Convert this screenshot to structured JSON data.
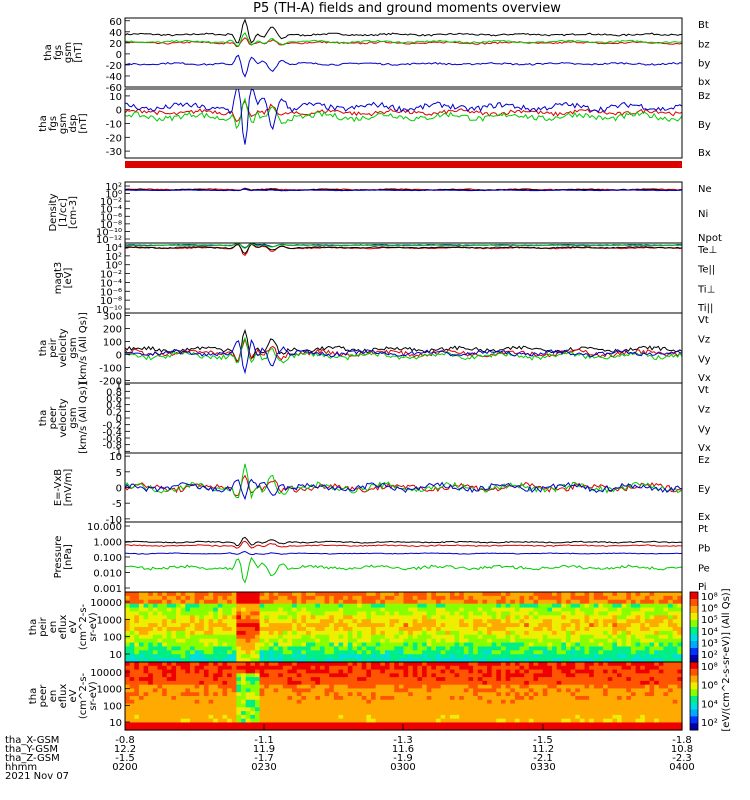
{
  "title": "P5 (TH-A) fields and ground moments overview",
  "colors": {
    "black": "#000000",
    "red": "#dd0000",
    "green": "#00cc00",
    "blue": "#0000cc"
  },
  "chart_data": [
    {
      "type": "line",
      "ylabel": [
        "tha",
        "fgs",
        "gsm",
        "[nT]"
      ],
      "yticks": [
        60,
        40,
        20,
        0,
        -20,
        -40,
        -60
      ],
      "ylim": [
        -60,
        65
      ],
      "series": [
        {
          "name": "Bt",
          "color": "black",
          "base": 35,
          "noise": 1.5,
          "event": 28
        },
        {
          "name": "bz",
          "color": "red",
          "base": 20,
          "noise": 1.5,
          "event": 10
        },
        {
          "name": "by",
          "color": "green",
          "base": 22,
          "noise": 1.5,
          "event": 15
        },
        {
          "name": "bx",
          "color": "blue",
          "base": -18,
          "noise": 1.5,
          "event": -25
        }
      ]
    },
    {
      "type": "line",
      "ylabel": [
        "tha",
        "fgs",
        "gsm",
        "dsp",
        "[nT]"
      ],
      "yticks": [
        10,
        0,
        -10,
        -20,
        -30
      ],
      "ylim": [
        -35,
        15
      ],
      "series": [
        {
          "name": "Bz",
          "color": "red",
          "base": -2,
          "noise": 1.5,
          "event": 8
        },
        {
          "name": "By",
          "color": "green",
          "base": -5,
          "noise": 2,
          "event": 12
        },
        {
          "name": "Bx",
          "color": "blue",
          "base": 2,
          "noise": 2,
          "event": -30
        }
      ]
    },
    {
      "type": "line",
      "ylabel": [
        "Density",
        "[1/cc]",
        "[cm-3]"
      ],
      "yticks": [
        "10²",
        "10⁰",
        "10⁻²",
        "10⁻⁴",
        "10⁻⁶",
        "10⁻⁸",
        "10⁻¹⁰",
        "10⁻¹²"
      ],
      "log": true,
      "ylim": [
        -12,
        2
      ],
      "series": [
        {
          "name": "Ne",
          "color": "red",
          "base": 0.3,
          "noise": 0.1,
          "event": 0.3
        },
        {
          "name": "Ni",
          "color": "black",
          "base": 0.2,
          "noise": 0.1,
          "event": 0.3
        },
        {
          "name": "Npot",
          "color": "blue",
          "base": 0.1,
          "noise": 0.05,
          "event": 0.2
        }
      ]
    },
    {
      "type": "line",
      "ylabel": [
        "magt3",
        "[eV]"
      ],
      "yticks": [
        "10⁴",
        "10²",
        "10⁰",
        "10⁻²",
        "10⁻⁴",
        "10⁻⁶",
        "10⁻⁸",
        "10⁻¹⁰"
      ],
      "log": true,
      "ylim": [
        -10,
        4
      ],
      "series": [
        {
          "name": "Te⊥",
          "color": "red",
          "base": 3,
          "noise": 0.1,
          "event": -1.5
        },
        {
          "name": "Te||",
          "color": "black",
          "base": 3.1,
          "noise": 0.1,
          "event": -1.2
        },
        {
          "name": "Ti⊥",
          "color": "blue",
          "base": 3.6,
          "noise": 0.05,
          "event": -0.6
        },
        {
          "name": "Ti||",
          "color": "green",
          "base": 3.5,
          "noise": 0.05,
          "event": -0.6
        }
      ]
    },
    {
      "type": "line",
      "ylabel": [
        "tha",
        "peir",
        "velocity",
        "gsm",
        "[km/s (All Qs)]"
      ],
      "yticks": [
        300,
        200,
        100,
        0,
        -100,
        -200
      ],
      "ylim": [
        -220,
        320
      ],
      "series": [
        {
          "name": "Vt",
          "color": "black",
          "base": 40,
          "noise": 15,
          "event": 150
        },
        {
          "name": "Vz",
          "color": "red",
          "base": 10,
          "noise": 18,
          "event": 90
        },
        {
          "name": "Vy",
          "color": "green",
          "base": -10,
          "noise": 18,
          "event": 110
        },
        {
          "name": "Vx",
          "color": "blue",
          "base": 10,
          "noise": 15,
          "event": -170
        }
      ]
    },
    {
      "type": "line",
      "ylabel": [
        "tha",
        "peer",
        "velocity",
        "gsm",
        "[km/s (All Qs)]"
      ],
      "yticks": [
        1.0,
        0.8,
        0.6,
        0.4,
        0.2,
        0.0,
        -0.2,
        -0.4,
        -0.6,
        -0.8,
        -1.0
      ],
      "ylim": [
        -1.05,
        1.05
      ],
      "series": [
        {
          "name": "Vt",
          "color": "black"
        },
        {
          "name": "Vz",
          "color": "red"
        },
        {
          "name": "Vy",
          "color": "green"
        },
        {
          "name": "Vx",
          "color": "blue"
        }
      ]
    },
    {
      "type": "line",
      "ylabel": [
        "E=-VxB",
        "[mV/m]"
      ],
      "yticks": [
        10,
        5,
        0,
        -5,
        -10
      ],
      "ylim": [
        -11,
        11
      ],
      "series": [
        {
          "name": "Ez",
          "color": "red",
          "base": 0,
          "noise": 0.9,
          "event": 4
        },
        {
          "name": "Ey",
          "color": "green",
          "base": 0,
          "noise": 1.0,
          "event": 7
        },
        {
          "name": "Ex",
          "color": "blue",
          "base": 0,
          "noise": 0.9,
          "event": -4
        }
      ]
    },
    {
      "type": "line",
      "ylabel": [
        "Pressure",
        "[nPa]"
      ],
      "yticks": [
        "10.000",
        "1.000",
        "0.100",
        "0.010",
        "0.001"
      ],
      "log": true,
      "ylim": [
        -3,
        1
      ],
      "series": [
        {
          "name": "Pt",
          "color": "black",
          "base": -0.15,
          "noise": 0.03,
          "event": 0.3
        },
        {
          "name": "Pb",
          "color": "red",
          "base": -0.35,
          "noise": 0.03,
          "event": 0.25
        },
        {
          "name": "Pe",
          "color": "green",
          "base": -1.6,
          "noise": 0.08,
          "event": -0.9
        },
        {
          "name": "Pi",
          "color": "blue",
          "base": -0.8,
          "noise": 0.02,
          "event": 0.1
        }
      ]
    },
    {
      "type": "heatmap",
      "ylabel": [
        "tha",
        "peir",
        "en",
        "eflux",
        "eV",
        "(cm^2-s-",
        "sr-eV)"
      ],
      "yticks": [
        "10000",
        "1000",
        "100",
        "10"
      ],
      "ylim": [
        5,
        24000
      ],
      "colorbar_ticks": [
        "10⁸",
        "10⁶",
        "10⁵",
        "10⁴",
        "10³",
        "10²"
      ]
    },
    {
      "type": "heatmap",
      "ylabel": [
        "tha",
        "peer",
        "en",
        "eflux",
        "eV",
        "(cm^2-s-",
        "sr-eV)"
      ],
      "yticks": [
        "10000",
        "1000",
        "100",
        "10"
      ],
      "ylim": [
        5,
        24000
      ],
      "colorbar_ticks": [
        "10⁸",
        "10⁶",
        "10⁴",
        "10²"
      ]
    }
  ],
  "colorbar_unit": "[eV/(cm^2-s-sr-eV)] (All Qs)]",
  "x_axis": {
    "row_labels": [
      "tha_X-GSM",
      "tha_Y-GSM",
      "tha_Z-GSM",
      "hhmm",
      "2021 Nov 07"
    ],
    "columns": [
      {
        "x": [
          "-0.8",
          "12.2",
          "-1.5",
          "0200"
        ]
      },
      {
        "x": [
          "-1.1",
          "11.9",
          "-1.7",
          "0230"
        ]
      },
      {
        "x": [
          "-1.3",
          "11.6",
          "-1.9",
          "0300"
        ]
      },
      {
        "x": [
          "-1.5",
          "11.2",
          "-2.1",
          "0330"
        ]
      },
      {
        "x": [
          "-1.8",
          "10.8",
          "-2.3",
          "0400"
        ]
      }
    ]
  }
}
